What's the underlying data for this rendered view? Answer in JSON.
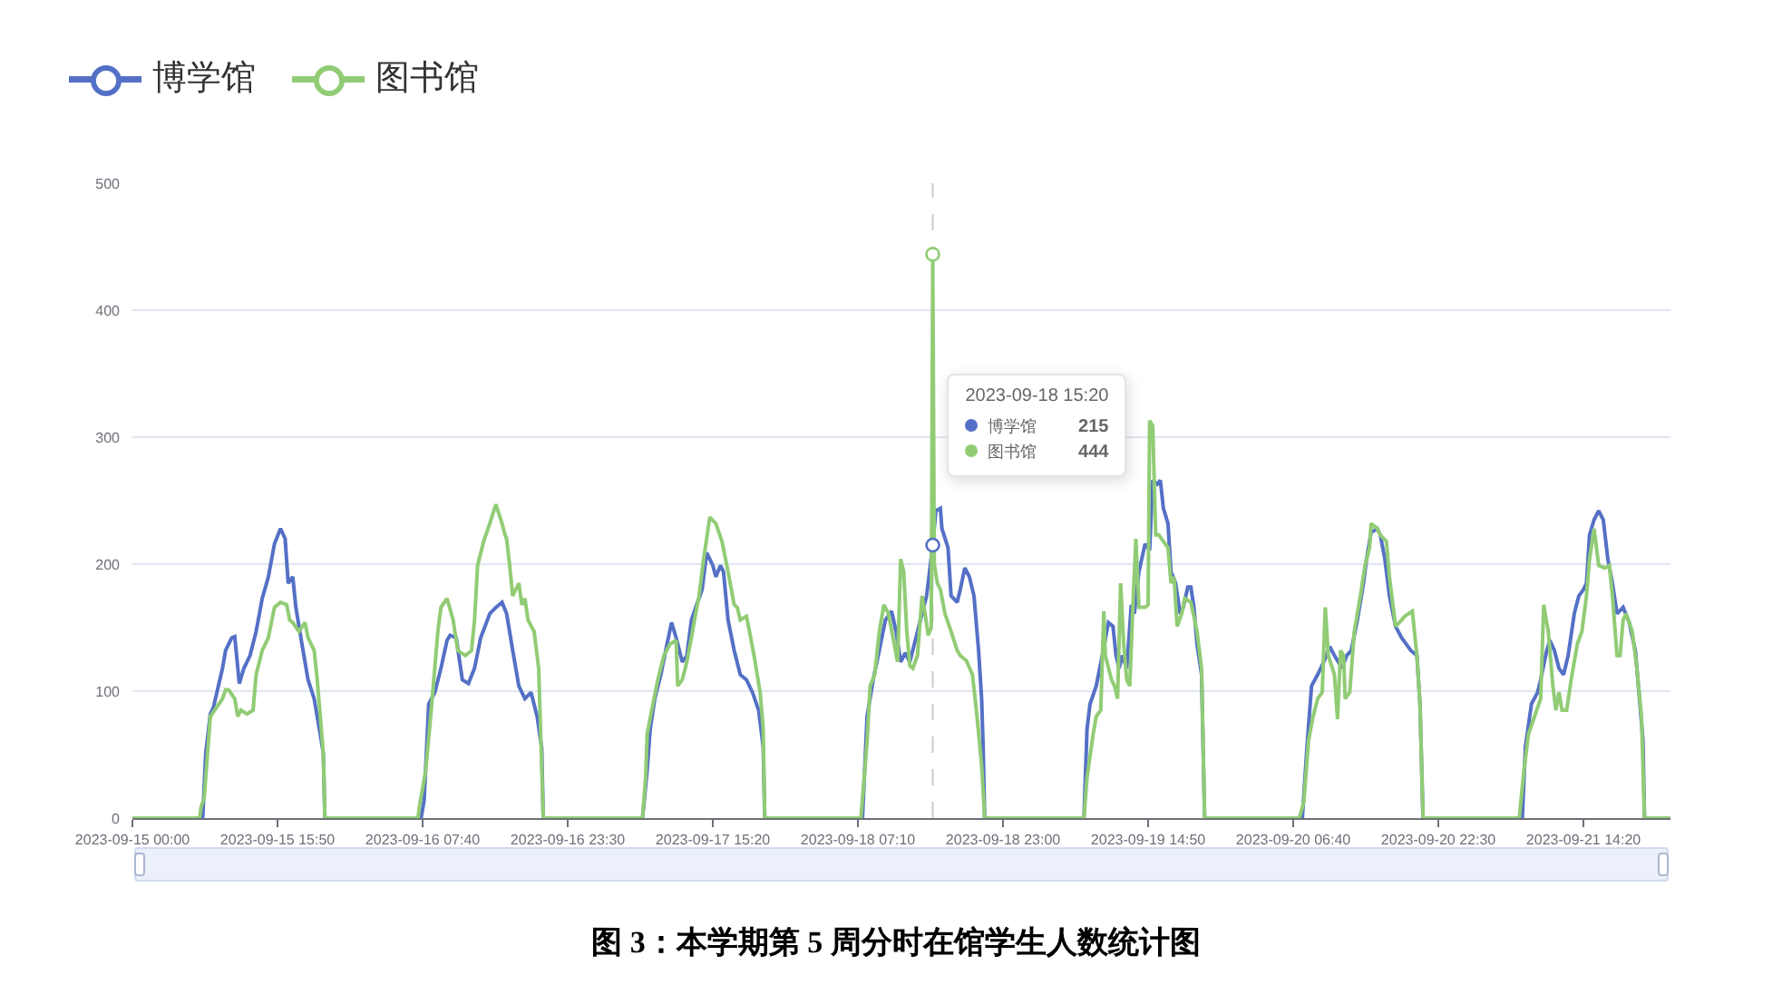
{
  "chart_data": {
    "type": "line",
    "title": "图 3：本学期第 5 周分时在馆学生人数统计图",
    "xlim": [
      "2023-09-15T00:00",
      "2023-09-21T23:50"
    ],
    "xticks": [
      {
        "value": "2023-09-15T00:00",
        "label": "2023-09-15 00:00"
      },
      {
        "value": "2023-09-15T15:50",
        "label": "2023-09-15 15:50"
      },
      {
        "value": "2023-09-16T07:40",
        "label": "2023-09-16 07:40"
      },
      {
        "value": "2023-09-16T23:30",
        "label": "2023-09-16 23:30"
      },
      {
        "value": "2023-09-17T15:20",
        "label": "2023-09-17 15:20"
      },
      {
        "value": "2023-09-18T07:10",
        "label": "2023-09-18 07:10"
      },
      {
        "value": "2023-09-18T23:00",
        "label": "2023-09-18 23:00"
      },
      {
        "value": "2023-09-19T14:50",
        "label": "2023-09-19 14:50"
      },
      {
        "value": "2023-09-20T06:40",
        "label": "2023-09-20 06:40"
      },
      {
        "value": "2023-09-20T22:30",
        "label": "2023-09-20 22:30"
      },
      {
        "value": "2023-09-21T14:20",
        "label": "2023-09-21 14:20"
      }
    ],
    "ylim": [
      0,
      500
    ],
    "yticks": [
      0,
      100,
      200,
      300,
      400,
      500
    ],
    "grid": "y",
    "legend": "top left",
    "series": [
      {
        "name": "博学馆",
        "color": "#5470c6",
        "x": [
          "2023-09-15T00:00",
          "2023-09-15T07:40",
          "2023-09-15T08:00",
          "2023-09-15T08:30",
          "2023-09-15T08:50",
          "2023-09-15T09:50",
          "2023-09-15T10:10",
          "2023-09-15T10:50",
          "2023-09-15T11:10",
          "2023-09-15T11:40",
          "2023-09-15T12:10",
          "2023-09-15T12:50",
          "2023-09-15T13:30",
          "2023-09-15T14:10",
          "2023-09-15T14:50",
          "2023-09-15T15:30",
          "2023-09-15T16:10",
          "2023-09-15T16:40",
          "2023-09-15T17:00",
          "2023-09-15T17:30",
          "2023-09-15T17:50",
          "2023-09-15T18:30",
          "2023-09-15T19:10",
          "2023-09-15T19:50",
          "2023-09-15T20:30",
          "2023-09-15T20:50",
          "2023-09-15T21:00",
          "2023-09-16T07:30",
          "2023-09-16T07:50",
          "2023-09-16T08:20",
          "2023-09-16T09:00",
          "2023-09-16T09:40",
          "2023-09-16T10:20",
          "2023-09-16T10:40",
          "2023-09-16T11:20",
          "2023-09-16T12:00",
          "2023-09-16T12:40",
          "2023-09-16T13:20",
          "2023-09-16T14:00",
          "2023-09-16T15:00",
          "2023-09-16T15:40",
          "2023-09-16T16:20",
          "2023-09-16T16:50",
          "2023-09-16T17:30",
          "2023-09-16T18:10",
          "2023-09-16T18:50",
          "2023-09-16T19:30",
          "2023-09-16T20:10",
          "2023-09-16T20:40",
          "2023-09-16T20:50",
          "2023-09-17T07:40",
          "2023-09-17T08:10",
          "2023-09-17T08:30",
          "2023-09-17T09:00",
          "2023-09-17T09:40",
          "2023-09-17T10:20",
          "2023-09-17T10:50",
          "2023-09-17T11:20",
          "2023-09-17T12:00",
          "2023-09-17T12:30",
          "2023-09-17T13:00",
          "2023-09-17T13:40",
          "2023-09-17T14:10",
          "2023-09-17T14:40",
          "2023-09-17T15:20",
          "2023-09-17T15:40",
          "2023-09-17T16:10",
          "2023-09-17T16:30",
          "2023-09-17T17:00",
          "2023-09-17T17:40",
          "2023-09-17T18:20",
          "2023-09-17T19:00",
          "2023-09-17T19:40",
          "2023-09-17T20:20",
          "2023-09-17T20:50",
          "2023-09-17T21:00",
          "2023-09-18T07:40",
          "2023-09-18T08:10",
          "2023-09-18T08:50",
          "2023-09-18T09:30",
          "2023-09-18T10:10",
          "2023-09-18T10:50",
          "2023-09-18T11:20",
          "2023-09-18T11:50",
          "2023-09-18T12:20",
          "2023-09-18T12:50",
          "2023-09-18T13:30",
          "2023-09-18T14:10",
          "2023-09-18T14:40",
          "2023-09-18T15:20",
          "2023-09-18T15:40",
          "2023-09-18T16:10",
          "2023-09-18T16:20",
          "2023-09-18T17:00",
          "2023-09-18T17:20",
          "2023-09-18T18:00",
          "2023-09-18T18:20",
          "2023-09-18T18:50",
          "2023-09-18T19:20",
          "2023-09-18T19:50",
          "2023-09-18T20:20",
          "2023-09-18T20:40",
          "2023-09-18T20:50",
          "2023-09-18T21:00",
          "2023-09-19T07:50",
          "2023-09-19T08:10",
          "2023-09-19T08:30",
          "2023-09-19T09:10",
          "2023-09-19T09:50",
          "2023-09-19T10:30",
          "2023-09-19T11:00",
          "2023-09-19T11:20",
          "2023-09-19T11:40",
          "2023-09-19T12:00",
          "2023-09-19T12:30",
          "2023-09-19T13:00",
          "2023-09-19T13:20",
          "2023-09-19T13:50",
          "2023-09-19T14:30",
          "2023-09-19T15:00",
          "2023-09-19T15:20",
          "2023-09-19T15:50",
          "2023-09-19T16:10",
          "2023-09-19T16:30",
          "2023-09-19T17:00",
          "2023-09-19T17:20",
          "2023-09-19T17:50",
          "2023-09-19T18:20",
          "2023-09-19T18:40",
          "2023-09-19T19:10",
          "2023-09-19T19:30",
          "2023-09-19T19:50",
          "2023-09-19T20:10",
          "2023-09-19T20:40",
          "2023-09-19T21:00",
          "2023-09-20T07:40",
          "2023-09-20T08:10",
          "2023-09-20T08:40",
          "2023-09-20T09:20",
          "2023-09-20T10:00",
          "2023-09-20T10:40",
          "2023-09-20T11:10",
          "2023-09-20T12:00",
          "2023-09-20T12:30",
          "2023-09-20T13:00",
          "2023-09-20T13:40",
          "2023-09-20T14:20",
          "2023-09-20T14:40",
          "2023-09-20T15:10",
          "2023-09-20T15:50",
          "2023-09-20T16:10",
          "2023-09-20T16:40",
          "2023-09-20T17:10",
          "2023-09-20T17:50",
          "2023-09-20T18:30",
          "2023-09-20T19:00",
          "2023-09-20T19:30",
          "2023-09-20T20:10",
          "2023-09-20T20:30",
          "2023-09-20T20:50",
          "2023-09-21T07:40",
          "2023-09-21T08:00",
          "2023-09-21T08:40",
          "2023-09-21T09:20",
          "2023-09-21T09:40",
          "2023-09-21T10:20",
          "2023-09-21T10:40",
          "2023-09-21T11:10",
          "2023-09-21T11:40",
          "2023-09-21T12:10",
          "2023-09-21T12:40",
          "2023-09-21T13:20",
          "2023-09-21T13:50",
          "2023-09-21T14:20",
          "2023-09-21T14:40",
          "2023-09-21T15:00",
          "2023-09-21T15:30",
          "2023-09-21T16:00",
          "2023-09-21T16:30",
          "2023-09-21T17:00",
          "2023-09-21T17:30",
          "2023-09-21T18:00",
          "2023-09-21T18:40",
          "2023-09-21T19:20",
          "2023-09-21T20:00",
          "2023-09-21T20:20",
          "2023-09-21T20:50",
          "2023-09-21T21:00",
          "2023-09-21T23:50"
        ],
        "values": [
          0,
          0,
          51,
          82,
          87,
          118,
          132,
          142,
          143,
          106,
          118,
          128,
          147,
          173,
          190,
          216,
          228,
          220,
          185,
          190,
          166,
          137,
          109,
          94,
          66,
          51,
          0,
          0,
          14,
          90,
          99,
          118,
          140,
          144,
          142,
          109,
          106,
          118,
          142,
          161,
          166,
          170,
          161,
          132,
          104,
          94,
          99,
          80,
          55,
          0,
          0,
          37,
          70,
          94,
          113,
          137,
          154,
          142,
          123,
          128,
          156,
          170,
          180,
          209,
          199,
          190,
          199,
          194,
          156,
          132,
          113,
          109,
          99,
          85,
          56,
          0,
          0,
          80,
          109,
          132,
          156,
          163,
          147,
          123,
          130,
          123,
          142,
          161,
          175,
          215,
          242,
          244,
          228,
          213,
          175,
          170,
          180,
          197,
          190,
          175,
          132,
          94,
          56,
          0,
          0,
          70,
          90,
          104,
          128,
          154,
          151,
          128,
          118,
          128,
          118,
          168,
          161,
          194,
          216,
          211,
          266,
          263,
          266,
          244,
          232,
          194,
          185,
          161,
          166,
          182,
          182,
          166,
          137,
          113,
          0,
          0,
          56,
          104,
          113,
          123,
          135,
          128,
          118,
          128,
          132,
          156,
          185,
          204,
          225,
          228,
          223,
          204,
          175,
          151,
          142,
          137,
          132,
          128,
          90,
          0,
          0,
          56,
          90,
          99,
          109,
          132,
          140,
          132,
          118,
          113,
          128,
          161,
          175,
          180,
          185,
          223,
          235,
          242,
          235,
          204,
          185,
          161,
          166,
          154,
          132,
          104,
          61,
          0,
          0
        ]
      },
      {
        "name": "图书馆",
        "color": "#91cc75",
        "x": [
          "2023-09-15T00:00",
          "2023-09-15T07:20",
          "2023-09-15T07:30",
          "2023-09-15T07:50",
          "2023-09-15T08:30",
          "2023-09-15T09:10",
          "2023-09-15T09:50",
          "2023-09-15T10:10",
          "2023-09-15T10:30",
          "2023-09-15T11:10",
          "2023-09-15T11:30",
          "2023-09-15T11:50",
          "2023-09-15T12:30",
          "2023-09-15T13:10",
          "2023-09-15T13:30",
          "2023-09-15T14:10",
          "2023-09-15T14:50",
          "2023-09-15T15:30",
          "2023-09-15T16:10",
          "2023-09-15T16:50",
          "2023-09-15T17:10",
          "2023-09-15T17:30",
          "2023-09-15T18:10",
          "2023-09-15T18:50",
          "2023-09-15T19:10",
          "2023-09-15T19:50",
          "2023-09-15T20:10",
          "2023-09-15T20:50",
          "2023-09-15T21:00",
          "2023-09-16T07:10",
          "2023-09-16T07:20",
          "2023-09-16T08:00",
          "2023-09-16T08:40",
          "2023-09-16T09:20",
          "2023-09-16T09:40",
          "2023-09-16T10:20",
          "2023-09-16T11:00",
          "2023-09-16T11:30",
          "2023-09-16T12:20",
          "2023-09-16T13:00",
          "2023-09-16T13:20",
          "2023-09-16T13:40",
          "2023-09-16T14:20",
          "2023-09-16T15:00",
          "2023-09-16T15:40",
          "2023-09-16T16:20",
          "2023-09-16T16:40",
          "2023-09-16T16:50",
          "2023-09-16T17:10",
          "2023-09-16T17:30",
          "2023-09-16T17:50",
          "2023-09-16T18:10",
          "2023-09-16T18:30",
          "2023-09-16T18:50",
          "2023-09-16T19:10",
          "2023-09-16T19:50",
          "2023-09-16T20:20",
          "2023-09-16T20:50",
          "2023-09-17T07:40",
          "2023-09-17T08:00",
          "2023-09-17T08:10",
          "2023-09-17T08:40",
          "2023-09-17T09:20",
          "2023-09-17T10:00",
          "2023-09-17T10:40",
          "2023-09-17T11:20",
          "2023-09-17T11:30",
          "2023-09-17T12:00",
          "2023-09-17T12:30",
          "2023-09-17T13:00",
          "2023-09-17T13:20",
          "2023-09-17T13:50",
          "2023-09-17T14:20",
          "2023-09-17T15:00",
          "2023-09-17T15:40",
          "2023-09-17T16:20",
          "2023-09-17T17:00",
          "2023-09-17T17:40",
          "2023-09-17T18:00",
          "2023-09-17T18:20",
          "2023-09-17T19:00",
          "2023-09-17T19:20",
          "2023-09-17T19:50",
          "2023-09-17T20:30",
          "2023-09-17T20:50",
          "2023-09-17T21:00",
          "2023-09-18T07:30",
          "2023-09-18T08:10",
          "2023-09-18T08:30",
          "2023-09-18T09:00",
          "2023-09-18T09:30",
          "2023-09-18T10:00",
          "2023-09-18T10:30",
          "2023-09-18T11:00",
          "2023-09-18T11:30",
          "2023-09-18T11:50",
          "2023-09-18T12:10",
          "2023-09-18T12:30",
          "2023-09-18T12:50",
          "2023-09-18T13:10",
          "2023-09-18T13:40",
          "2023-09-18T14:10",
          "2023-09-18T14:30",
          "2023-09-18T14:50",
          "2023-09-18T15:10",
          "2023-09-18T15:20",
          "2023-09-18T15:30",
          "2023-09-18T15:50",
          "2023-09-18T16:10",
          "2023-09-18T16:40",
          "2023-09-18T17:20",
          "2023-09-18T18:00",
          "2023-09-18T18:20",
          "2023-09-18T19:00",
          "2023-09-18T19:40",
          "2023-09-18T20:10",
          "2023-09-18T20:40",
          "2023-09-18T21:00",
          "2023-09-19T07:50",
          "2023-09-19T08:10",
          "2023-09-19T08:50",
          "2023-09-19T09:10",
          "2023-09-19T09:40",
          "2023-09-19T10:00",
          "2023-09-19T10:10",
          "2023-09-19T10:50",
          "2023-09-19T11:10",
          "2023-09-19T11:30",
          "2023-09-19T11:50",
          "2023-09-19T12:10",
          "2023-09-19T12:30",
          "2023-09-19T12:50",
          "2023-09-19T13:10",
          "2023-09-19T13:30",
          "2023-09-19T13:50",
          "2023-09-19T14:30",
          "2023-09-19T14:50",
          "2023-09-19T15:00",
          "2023-09-19T15:20",
          "2023-09-19T15:40",
          "2023-09-19T16:00",
          "2023-09-19T16:30",
          "2023-09-19T17:00",
          "2023-09-19T17:20",
          "2023-09-19T17:40",
          "2023-09-19T18:00",
          "2023-09-19T18:30",
          "2023-09-19T18:50",
          "2023-09-19T19:30",
          "2023-09-19T20:10",
          "2023-09-19T20:40",
          "2023-09-19T21:00",
          "2023-09-20T07:20",
          "2023-09-20T07:50",
          "2023-09-20T08:20",
          "2023-09-20T08:50",
          "2023-09-20T09:20",
          "2023-09-20T09:50",
          "2023-09-20T10:10",
          "2023-09-20T10:30",
          "2023-09-20T11:10",
          "2023-09-20T11:30",
          "2023-09-20T11:50",
          "2023-09-20T12:10",
          "2023-09-20T12:20",
          "2023-09-20T12:50",
          "2023-09-20T13:20",
          "2023-09-20T14:00",
          "2023-09-20T14:30",
          "2023-09-20T15:00",
          "2023-09-20T15:10",
          "2023-09-20T15:50",
          "2023-09-20T16:10",
          "2023-09-20T16:50",
          "2023-09-20T17:10",
          "2023-09-20T17:50",
          "2023-09-20T18:30",
          "2023-09-20T18:50",
          "2023-09-20T19:40",
          "2023-09-20T20:10",
          "2023-09-20T20:30",
          "2023-09-20T20:50",
          "2023-09-21T07:20",
          "2023-09-21T07:50",
          "2023-09-21T08:20",
          "2023-09-21T09:00",
          "2023-09-21T09:40",
          "2023-09-21T10:00",
          "2023-09-21T10:30",
          "2023-09-21T11:00",
          "2023-09-21T11:20",
          "2023-09-21T11:40",
          "2023-09-21T12:00",
          "2023-09-21T12:30",
          "2023-09-21T13:00",
          "2023-09-21T13:40",
          "2023-09-21T14:10",
          "2023-09-21T14:40",
          "2023-09-21T15:00",
          "2023-09-21T15:30",
          "2023-09-21T16:00",
          "2023-09-21T16:40",
          "2023-09-21T17:10",
          "2023-09-21T17:30",
          "2023-09-21T18:00",
          "2023-09-21T18:20",
          "2023-09-21T18:40",
          "2023-09-21T19:00",
          "2023-09-21T19:40",
          "2023-09-21T20:10",
          "2023-09-21T20:40",
          "2023-09-21T21:00",
          "2023-09-21T23:50"
        ],
        "values": [
          0,
          0,
          9,
          16,
          80,
          87,
          94,
          101,
          101,
          94,
          80,
          85,
          82,
          85,
          113,
          132,
          142,
          166,
          170,
          168,
          156,
          154,
          147,
          154,
          142,
          132,
          109,
          51,
          0,
          0,
          10,
          37,
          90,
          147,
          166,
          173,
          156,
          132,
          128,
          132,
          156,
          199,
          218,
          232,
          247,
          232,
          223,
          220,
          199,
          175,
          180,
          185,
          168,
          173,
          156,
          147,
          118,
          0,
          0,
          32,
          66,
          85,
          109,
          128,
          137,
          140,
          104,
          109,
          123,
          142,
          156,
          175,
          204,
          237,
          232,
          218,
          194,
          168,
          166,
          156,
          159,
          147,
          128,
          99,
          70,
          0,
          0,
          60,
          104,
          113,
          147,
          168,
          161,
          142,
          123,
          204,
          194,
          147,
          120,
          118,
          128,
          175,
          161,
          144,
          150,
          444,
          200,
          185,
          180,
          161,
          147,
          132,
          128,
          124,
          113,
          80,
          42,
          0,
          0,
          32,
          66,
          80,
          85,
          163,
          128,
          109,
          104,
          94,
          185,
          137,
          109,
          104,
          166,
          220,
          166,
          166,
          168,
          313,
          309,
          223,
          223,
          218,
          213,
          185,
          190,
          151,
          161,
          173,
          170,
          147,
          118,
          0,
          0,
          13,
          61,
          80,
          94,
          99,
          166,
          128,
          113,
          78,
          132,
          128,
          94,
          99,
          147,
          175,
          199,
          213,
          232,
          228,
          223,
          218,
          190,
          151,
          156,
          159,
          163,
          128,
          90,
          0,
          0,
          37,
          66,
          80,
          94,
          168,
          147,
          104,
          85,
          99,
          85,
          85,
          109,
          137,
          147,
          175,
          204,
          228,
          199,
          197,
          199,
          175,
          128,
          128,
          156,
          161,
          147,
          118,
          80,
          0,
          0
        ]
      }
    ],
    "ref_lines": [
      {
        "axis": "x",
        "value": "2023-09-18T15:20",
        "color": "#cccccc",
        "line_style": "dashed"
      }
    ],
    "annotations": [
      {
        "text": "2023-09-18 15:20",
        "x": "2023-09-18T15:20"
      },
      "215",
      "444"
    ]
  }
}
